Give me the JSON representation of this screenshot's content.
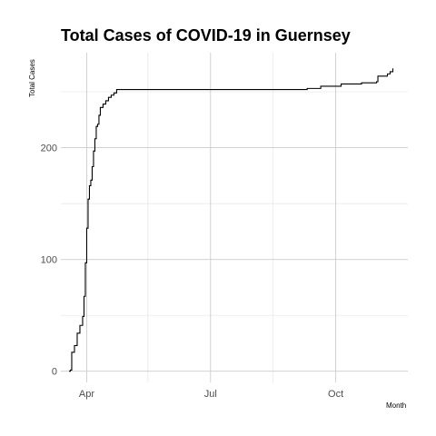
{
  "chart_data": {
    "type": "line",
    "title": "Total Cases of COVID-19 in Guernsey",
    "xlabel": "Month",
    "ylabel": "Total Cases",
    "x_type": "date",
    "xlim": [
      "2020-03-13",
      "2020-11-23"
    ],
    "ylim": [
      -10,
      285
    ],
    "x_ticks": [
      {
        "date": "2020-04-01",
        "label": "Apr"
      },
      {
        "date": "2020-07-01",
        "label": "Jul"
      },
      {
        "date": "2020-10-01",
        "label": "Oct"
      }
    ],
    "x_minor_ticks": [
      "2020-05-16",
      "2020-08-16"
    ],
    "y_ticks": [
      0,
      100,
      200
    ],
    "y_minor_ticks": [
      50,
      150,
      250
    ],
    "grid": true,
    "series": [
      {
        "values": [
          {
            "x": "2020-03-19",
            "y": 0
          },
          {
            "x": "2020-03-20",
            "y": 1
          },
          {
            "x": "2020-03-21",
            "y": 17
          },
          {
            "x": "2020-03-23",
            "y": 23
          },
          {
            "x": "2020-03-25",
            "y": 34
          },
          {
            "x": "2020-03-27",
            "y": 41
          },
          {
            "x": "2020-03-29",
            "y": 49
          },
          {
            "x": "2020-03-30",
            "y": 67
          },
          {
            "x": "2020-03-31",
            "y": 97
          },
          {
            "x": "2020-04-01",
            "y": 128
          },
          {
            "x": "2020-04-02",
            "y": 154
          },
          {
            "x": "2020-04-03",
            "y": 166
          },
          {
            "x": "2020-04-04",
            "y": 171
          },
          {
            "x": "2020-04-05",
            "y": 183
          },
          {
            "x": "2020-04-06",
            "y": 197
          },
          {
            "x": "2020-04-07",
            "y": 208
          },
          {
            "x": "2020-04-08",
            "y": 219
          },
          {
            "x": "2020-04-09",
            "y": 221
          },
          {
            "x": "2020-04-10",
            "y": 229
          },
          {
            "x": "2020-04-11",
            "y": 236
          },
          {
            "x": "2020-04-13",
            "y": 239
          },
          {
            "x": "2020-04-15",
            "y": 242
          },
          {
            "x": "2020-04-17",
            "y": 245
          },
          {
            "x": "2020-04-19",
            "y": 247
          },
          {
            "x": "2020-04-21",
            "y": 249
          },
          {
            "x": "2020-04-23",
            "y": 252
          },
          {
            "x": "2020-04-25",
            "y": 252
          },
          {
            "x": "2020-09-01",
            "y": 252
          },
          {
            "x": "2020-09-10",
            "y": 253
          },
          {
            "x": "2020-09-20",
            "y": 255
          },
          {
            "x": "2020-10-05",
            "y": 257
          },
          {
            "x": "2020-10-20",
            "y": 258
          },
          {
            "x": "2020-10-31",
            "y": 259
          },
          {
            "x": "2020-11-01",
            "y": 264
          },
          {
            "x": "2020-11-08",
            "y": 266
          },
          {
            "x": "2020-11-10",
            "y": 268
          },
          {
            "x": "2020-11-12",
            "y": 271
          }
        ]
      }
    ]
  }
}
